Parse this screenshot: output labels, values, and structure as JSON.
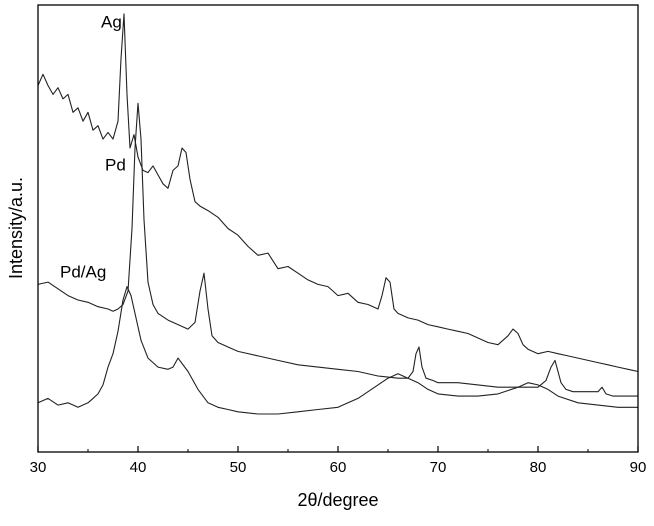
{
  "chart_data": {
    "type": "line",
    "xlabel": "2θ/degree",
    "ylabel": "Intensity/a.u.",
    "xlim": [
      30,
      90
    ],
    "ylim": [
      0,
      100
    ],
    "xticks": [
      30,
      40,
      50,
      60,
      70,
      80,
      90
    ],
    "yticks_shown": false,
    "grid": false,
    "series": [
      {
        "name": "Ag",
        "x": [
          30,
          30.5,
          31,
          31.5,
          32,
          32.5,
          33,
          33.5,
          34,
          34.5,
          35,
          35.5,
          36,
          36.5,
          37,
          37.5,
          38,
          38.3,
          38.6,
          38.9,
          39.2,
          39.6,
          40,
          40.5,
          41,
          41.5,
          42,
          42.5,
          43,
          43.5,
          44,
          44.4,
          44.8,
          45.2,
          45.7,
          46.2,
          47,
          48,
          49,
          50,
          51,
          52,
          53,
          54,
          55,
          56,
          57,
          58,
          59,
          60,
          61,
          62,
          63,
          64,
          64.4,
          64.8,
          65.2,
          65.6,
          66,
          67,
          68,
          69,
          70,
          71,
          72,
          73,
          74,
          75,
          76,
          77,
          77.5,
          78,
          78.5,
          79,
          80,
          81,
          82,
          83,
          84,
          85,
          86,
          87,
          88,
          89,
          90
        ],
        "y": [
          82,
          84.5,
          82,
          80,
          81.5,
          79,
          80,
          76,
          77,
          74,
          76,
          72,
          73,
          70,
          71.5,
          70,
          74,
          88,
          98,
          80,
          68,
          71,
          66,
          63,
          62.5,
          64,
          62,
          60,
          59,
          63,
          64,
          68,
          67,
          61,
          56,
          55,
          54,
          52.5,
          50,
          48.5,
          46,
          44,
          44.5,
          41,
          41.5,
          40,
          38.5,
          37.5,
          37,
          35,
          35.5,
          33.5,
          33,
          32,
          35,
          39,
          38,
          32,
          31,
          30,
          29.5,
          28.5,
          28,
          27.5,
          27,
          26.5,
          25.5,
          24.5,
          24,
          26,
          27.5,
          26.5,
          24,
          23,
          22,
          22.5,
          22,
          21.5,
          21,
          20.5,
          20,
          19.5,
          19,
          18.5,
          18
        ]
      },
      {
        "name": "Pd",
        "x": [
          30,
          31,
          32,
          33,
          34,
          35,
          36,
          37,
          37.5,
          38,
          38.5,
          39,
          39.4,
          39.7,
          40,
          40.3,
          40.6,
          41,
          41.5,
          42,
          43,
          44,
          45,
          45.7,
          46.2,
          46.6,
          47,
          47.4,
          48,
          49,
          50,
          52,
          54,
          56,
          58,
          60,
          62,
          64,
          66,
          67,
          67.5,
          67.8,
          68.1,
          68.4,
          68.8,
          69.5,
          70,
          72,
          74,
          76,
          78,
          80,
          80.8,
          81.3,
          81.7,
          82,
          82.3,
          82.8,
          83.5,
          85,
          86,
          86.4,
          86.8,
          87.5,
          89,
          90
        ],
        "y": [
          37.5,
          38,
          36.5,
          35,
          34,
          33.5,
          32.5,
          32,
          31.5,
          32,
          33,
          36,
          50,
          68,
          78,
          70,
          52,
          38,
          33,
          31,
          29.5,
          28.5,
          27.5,
          29,
          36,
          40,
          32,
          26,
          24.5,
          23.5,
          22.5,
          21.5,
          20.5,
          19.5,
          19,
          18.5,
          18,
          17,
          16.5,
          16.5,
          18,
          22,
          23.5,
          19,
          16.5,
          16,
          15.5,
          15.5,
          15,
          14.5,
          14.5,
          14.5,
          16,
          19,
          20.5,
          18,
          15.5,
          14,
          13.5,
          13.5,
          13.5,
          14.5,
          13,
          12.5,
          12.5,
          12.5
        ]
      },
      {
        "name": "Pd/Ag",
        "x": [
          30,
          31,
          32,
          33,
          34,
          35,
          35.5,
          36,
          36.5,
          37,
          37.5,
          38,
          38.5,
          38.9,
          39.3,
          39.8,
          40.3,
          41,
          42,
          43,
          43.5,
          44,
          45,
          46,
          47,
          48,
          49,
          50,
          52,
          54,
          56,
          58,
          60,
          61,
          62,
          63,
          64,
          65,
          66,
          66.5,
          67,
          68,
          69,
          70,
          72,
          74,
          76,
          78,
          79,
          80,
          81,
          82,
          84,
          86,
          88,
          90
        ],
        "y": [
          11,
          12,
          10.5,
          11,
          10,
          11,
          12,
          13,
          15,
          19,
          22,
          27,
          34,
          37,
          35,
          30,
          25,
          21,
          19,
          18.5,
          19,
          21,
          18,
          14,
          11,
          10,
          9.5,
          9,
          8.5,
          8.5,
          9,
          9.5,
          10,
          11,
          12,
          13.5,
          15,
          16.5,
          17.5,
          17,
          16.5,
          15.5,
          14,
          13,
          12.5,
          12.5,
          13,
          14.5,
          15.5,
          15,
          14,
          12.5,
          11,
          10.5,
          10,
          10
        ]
      }
    ],
    "annotations": [
      {
        "text": "Ag",
        "x": 36.3,
        "y": 95
      },
      {
        "text": "Pd",
        "x": 36.7,
        "y": 63
      },
      {
        "text": "Pd/Ag",
        "x": 32.2,
        "y": 39
      }
    ],
    "line_color": "#222222"
  }
}
